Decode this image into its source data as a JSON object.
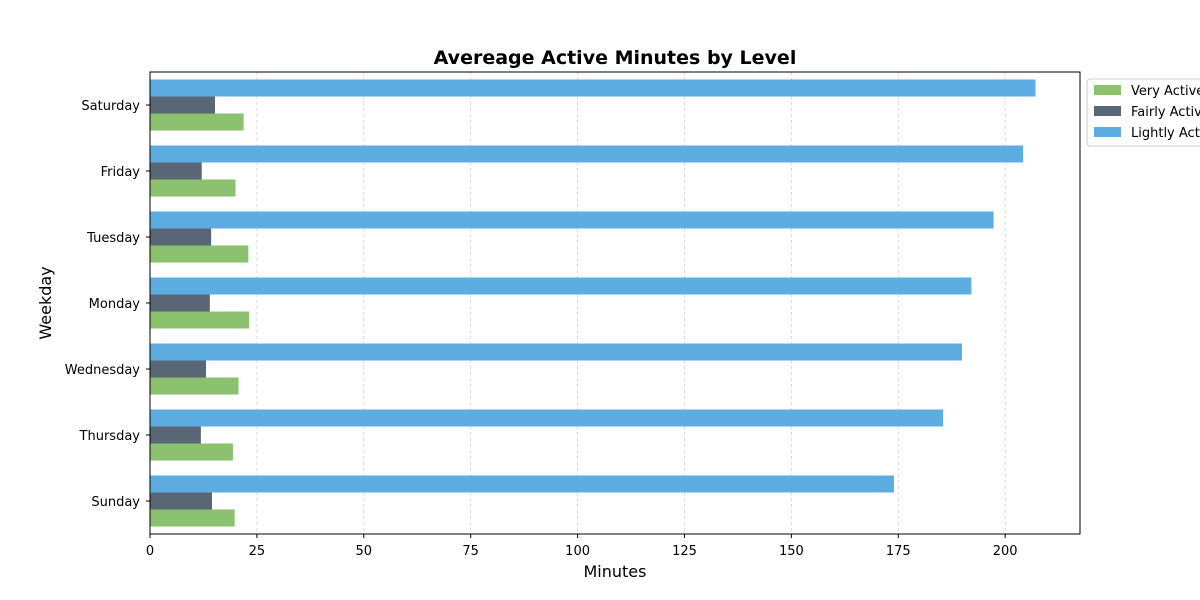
{
  "chart_data": {
    "type": "bar",
    "orientation": "horizontal",
    "title": "Avereage Active Minutes by Level",
    "xlabel": "Minutes",
    "ylabel": "Weekday",
    "categories": [
      "Sunday",
      "Thursday",
      "Wednesday",
      "Monday",
      "Tuesday",
      "Friday",
      "Saturday"
    ],
    "series": [
      {
        "name": "Very Active",
        "color": "#8bc16f",
        "values": [
          19.8,
          19.4,
          20.7,
          23.2,
          23.0,
          20.0,
          21.9
        ]
      },
      {
        "name": "Fairly Active",
        "color": "#596675",
        "values": [
          14.5,
          11.9,
          13.1,
          14.0,
          14.3,
          12.1,
          15.2
        ]
      },
      {
        "name": "Lightly Active",
        "color": "#5dade2",
        "values": [
          174.0,
          185.5,
          189.9,
          192.1,
          197.3,
          204.2,
          207.1
        ]
      }
    ],
    "xlim": [
      0,
      217.5
    ],
    "xticks": [
      0,
      25,
      50,
      75,
      100,
      125,
      150,
      175,
      200
    ],
    "grid": "x-dashed",
    "legend": "outside-top-right"
  }
}
